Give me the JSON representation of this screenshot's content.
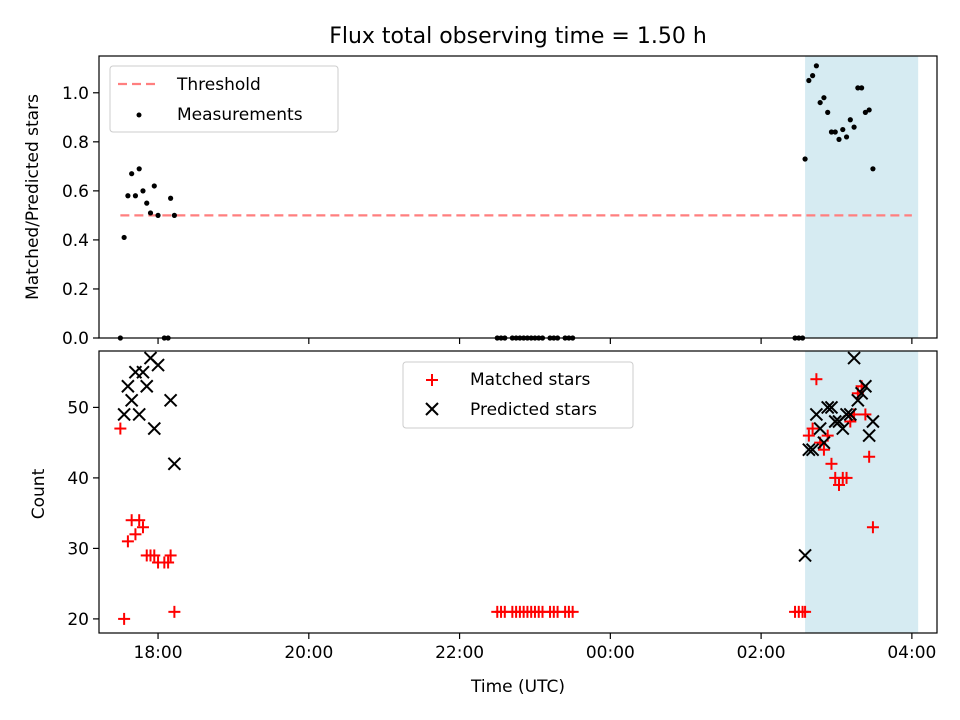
{
  "title": "Flux total observing time = 1.50 h",
  "colors": {
    "threshold": "#ff7f7f",
    "measurements": "#000000",
    "matched": "#ff0000",
    "predicted": "#000000",
    "highlight": "#add8e6"
  },
  "chart_data": [
    {
      "type": "scatter",
      "ylabel": "Matched/Predicted stars",
      "xlabel": "",
      "ylim": [
        0,
        1.15
      ],
      "yticks": [
        "0.0",
        "0.2",
        "0.4",
        "0.6",
        "0.8",
        "1.0"
      ],
      "xlim": [
        "17:13",
        "04:20"
      ],
      "legend": {
        "placement": "top-left",
        "entries": [
          "Threshold",
          "Measurements"
        ]
      },
      "highlight_span": {
        "x_start": "02:35",
        "x_end": "04:05"
      },
      "series": [
        {
          "name": "Threshold",
          "kind": "dashed-line",
          "points": [
            {
              "x": "17:30",
              "y": 0.5
            },
            {
              "x": "04:00",
              "y": 0.5
            }
          ]
        },
        {
          "name": "Measurements",
          "kind": "dot",
          "points": [
            {
              "x": "17:30",
              "y": 0.0
            },
            {
              "x": "17:33",
              "y": 0.41
            },
            {
              "x": "17:36",
              "y": 0.58
            },
            {
              "x": "17:39",
              "y": 0.67
            },
            {
              "x": "17:42",
              "y": 0.58
            },
            {
              "x": "17:45",
              "y": 0.69
            },
            {
              "x": "17:48",
              "y": 0.6
            },
            {
              "x": "17:51",
              "y": 0.55
            },
            {
              "x": "17:54",
              "y": 0.51
            },
            {
              "x": "17:57",
              "y": 0.62
            },
            {
              "x": "18:00",
              "y": 0.5
            },
            {
              "x": "18:05",
              "y": 0.0
            },
            {
              "x": "18:08",
              "y": 0.0
            },
            {
              "x": "18:10",
              "y": 0.57
            },
            {
              "x": "18:13",
              "y": 0.5
            },
            {
              "x": "22:30",
              "y": 0.0
            },
            {
              "x": "22:33",
              "y": 0.0
            },
            {
              "x": "22:36",
              "y": 0.0
            },
            {
              "x": "22:42",
              "y": 0.0
            },
            {
              "x": "22:45",
              "y": 0.0
            },
            {
              "x": "22:48",
              "y": 0.0
            },
            {
              "x": "22:51",
              "y": 0.0
            },
            {
              "x": "22:54",
              "y": 0.0
            },
            {
              "x": "22:57",
              "y": 0.0
            },
            {
              "x": "23:00",
              "y": 0.0
            },
            {
              "x": "23:03",
              "y": 0.0
            },
            {
              "x": "23:06",
              "y": 0.0
            },
            {
              "x": "23:12",
              "y": 0.0
            },
            {
              "x": "23:15",
              "y": 0.0
            },
            {
              "x": "23:18",
              "y": 0.0
            },
            {
              "x": "23:24",
              "y": 0.0
            },
            {
              "x": "23:27",
              "y": 0.0
            },
            {
              "x": "23:30",
              "y": 0.0
            },
            {
              "x": "02:27",
              "y": 0.0
            },
            {
              "x": "02:30",
              "y": 0.0
            },
            {
              "x": "02:33",
              "y": 0.0
            },
            {
              "x": "02:35",
              "y": 0.73
            },
            {
              "x": "02:38",
              "y": 1.05
            },
            {
              "x": "02:41",
              "y": 1.07
            },
            {
              "x": "02:44",
              "y": 1.11
            },
            {
              "x": "02:47",
              "y": 0.96
            },
            {
              "x": "02:50",
              "y": 0.98
            },
            {
              "x": "02:53",
              "y": 0.92
            },
            {
              "x": "02:56",
              "y": 0.84
            },
            {
              "x": "02:59",
              "y": 0.84
            },
            {
              "x": "03:02",
              "y": 0.81
            },
            {
              "x": "03:05",
              "y": 0.85
            },
            {
              "x": "03:08",
              "y": 0.82
            },
            {
              "x": "03:11",
              "y": 0.89
            },
            {
              "x": "03:14",
              "y": 0.86
            },
            {
              "x": "03:17",
              "y": 1.02
            },
            {
              "x": "03:20",
              "y": 1.02
            },
            {
              "x": "03:23",
              "y": 0.92
            },
            {
              "x": "03:26",
              "y": 0.93
            },
            {
              "x": "03:29",
              "y": 0.69
            }
          ]
        }
      ]
    },
    {
      "type": "scatter",
      "ylabel": "Count",
      "xlabel": "Time (UTC)",
      "ylim": [
        18,
        58
      ],
      "yticks": [
        "20",
        "30",
        "40",
        "50"
      ],
      "xticks": [
        "18:00",
        "20:00",
        "22:00",
        "00:00",
        "02:00",
        "04:00"
      ],
      "xlim": [
        "17:13",
        "04:20"
      ],
      "legend": {
        "placement": "top-center",
        "entries": [
          "Matched stars",
          "Predicted stars"
        ]
      },
      "highlight_span": {
        "x_start": "02:35",
        "x_end": "04:05"
      },
      "series": [
        {
          "name": "Matched stars",
          "kind": "plus",
          "points": [
            {
              "x": "17:30",
              "y": 47
            },
            {
              "x": "17:33",
              "y": 20
            },
            {
              "x": "17:36",
              "y": 31
            },
            {
              "x": "17:39",
              "y": 34
            },
            {
              "x": "17:42",
              "y": 32
            },
            {
              "x": "17:45",
              "y": 34
            },
            {
              "x": "17:48",
              "y": 33
            },
            {
              "x": "17:51",
              "y": 29
            },
            {
              "x": "17:54",
              "y": 29
            },
            {
              "x": "17:57",
              "y": 29
            },
            {
              "x": "18:00",
              "y": 28
            },
            {
              "x": "18:05",
              "y": 28
            },
            {
              "x": "18:08",
              "y": 28
            },
            {
              "x": "18:10",
              "y": 29
            },
            {
              "x": "18:13",
              "y": 21
            },
            {
              "x": "22:30",
              "y": 21
            },
            {
              "x": "22:33",
              "y": 21
            },
            {
              "x": "22:36",
              "y": 21
            },
            {
              "x": "22:42",
              "y": 21
            },
            {
              "x": "22:45",
              "y": 21
            },
            {
              "x": "22:48",
              "y": 21
            },
            {
              "x": "22:51",
              "y": 21
            },
            {
              "x": "22:54",
              "y": 21
            },
            {
              "x": "22:57",
              "y": 21
            },
            {
              "x": "23:00",
              "y": 21
            },
            {
              "x": "23:03",
              "y": 21
            },
            {
              "x": "23:06",
              "y": 21
            },
            {
              "x": "23:12",
              "y": 21
            },
            {
              "x": "23:15",
              "y": 21
            },
            {
              "x": "23:18",
              "y": 21
            },
            {
              "x": "23:24",
              "y": 21
            },
            {
              "x": "23:27",
              "y": 21
            },
            {
              "x": "23:30",
              "y": 21
            },
            {
              "x": "02:27",
              "y": 21
            },
            {
              "x": "02:30",
              "y": 21
            },
            {
              "x": "02:33",
              "y": 21
            },
            {
              "x": "02:35",
              "y": 21
            },
            {
              "x": "02:38",
              "y": 46
            },
            {
              "x": "02:41",
              "y": 47
            },
            {
              "x": "02:44",
              "y": 54
            },
            {
              "x": "02:47",
              "y": 45
            },
            {
              "x": "02:50",
              "y": 44
            },
            {
              "x": "02:53",
              "y": 46
            },
            {
              "x": "02:56",
              "y": 42
            },
            {
              "x": "02:59",
              "y": 40
            },
            {
              "x": "03:02",
              "y": 39
            },
            {
              "x": "03:05",
              "y": 40
            },
            {
              "x": "03:08",
              "y": 40
            },
            {
              "x": "03:11",
              "y": 48
            },
            {
              "x": "03:14",
              "y": 49
            },
            {
              "x": "03:17",
              "y": 52
            },
            {
              "x": "03:20",
              "y": 53
            },
            {
              "x": "03:23",
              "y": 49
            },
            {
              "x": "03:26",
              "y": 43
            },
            {
              "x": "03:29",
              "y": 33
            }
          ]
        },
        {
          "name": "Predicted stars",
          "kind": "cross",
          "points": [
            {
              "x": "17:33",
              "y": 49
            },
            {
              "x": "17:36",
              "y": 53
            },
            {
              "x": "17:39",
              "y": 51
            },
            {
              "x": "17:42",
              "y": 55
            },
            {
              "x": "17:45",
              "y": 49
            },
            {
              "x": "17:48",
              "y": 55
            },
            {
              "x": "17:51",
              "y": 53
            },
            {
              "x": "17:54",
              "y": 57
            },
            {
              "x": "17:57",
              "y": 47
            },
            {
              "x": "18:00",
              "y": 56
            },
            {
              "x": "18:10",
              "y": 51
            },
            {
              "x": "18:13",
              "y": 42
            },
            {
              "x": "02:35",
              "y": 29
            },
            {
              "x": "02:38",
              "y": 44
            },
            {
              "x": "02:41",
              "y": 44
            },
            {
              "x": "02:44",
              "y": 49
            },
            {
              "x": "02:47",
              "y": 47
            },
            {
              "x": "02:50",
              "y": 45
            },
            {
              "x": "02:53",
              "y": 50
            },
            {
              "x": "02:56",
              "y": 50
            },
            {
              "x": "02:59",
              "y": 48
            },
            {
              "x": "03:02",
              "y": 48
            },
            {
              "x": "03:05",
              "y": 47
            },
            {
              "x": "03:08",
              "y": 49
            },
            {
              "x": "03:11",
              "y": 49
            },
            {
              "x": "03:14",
              "y": 57
            },
            {
              "x": "03:17",
              "y": 51
            },
            {
              "x": "03:20",
              "y": 52
            },
            {
              "x": "03:23",
              "y": 53
            },
            {
              "x": "03:26",
              "y": 46
            },
            {
              "x": "03:29",
              "y": 48
            }
          ]
        }
      ]
    }
  ]
}
